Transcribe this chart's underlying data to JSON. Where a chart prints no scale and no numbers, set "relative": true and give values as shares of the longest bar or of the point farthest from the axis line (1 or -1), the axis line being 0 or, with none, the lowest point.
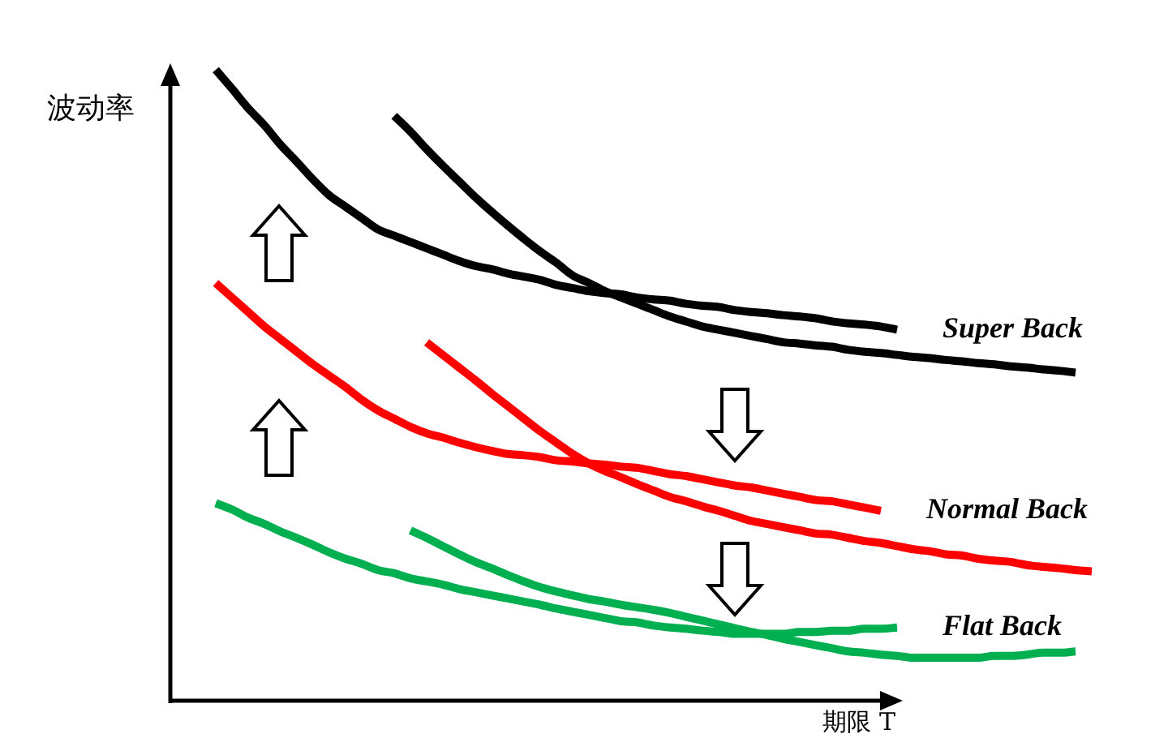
{
  "chart_data": {
    "type": "line",
    "relative": true,
    "xlabel": "期限 T",
    "ylabel": "波动率",
    "legend": false,
    "categories": [
      null,
      null,
      null,
      null,
      null,
      null,
      null,
      null,
      null,
      null,
      null,
      null,
      null,
      null,
      null,
      null,
      null,
      null,
      null,
      null,
      null,
      null,
      null,
      null,
      null,
      null,
      null,
      null,
      null,
      null,
      null,
      null,
      null,
      null,
      null,
      null,
      null,
      null,
      null,
      null,
      null,
      null,
      null,
      null,
      null,
      null,
      null,
      null,
      null,
      null,
      null,
      null,
      null,
      null,
      null
    ],
    "series": [
      {
        "name": "Super Back",
        "color": "#000000",
        "values": [
          1,
          0.97,
          0.939,
          0.912,
          0.881,
          0.854,
          0.826,
          0.801,
          0.783,
          0.765,
          0.747,
          0.737,
          0.727,
          0.717,
          0.707,
          0.697,
          0.689,
          0.684,
          0.677,
          0.672,
          0.667,
          0.659,
          0.654,
          0.649,
          0.646,
          0.644,
          0.639,
          0.636,
          0.634,
          0.629,
          0.626,
          0.624,
          0.619,
          0.616,
          0.614,
          0.611,
          0.609,
          0.606,
          0.601,
          0.598,
          0.596,
          0.593,
          0.588,
          null,
          null,
          null,
          null,
          null,
          null,
          null,
          null,
          null,
          null,
          null,
          null
        ]
      },
      {
        "color": "#000000",
        "values": [
          null,
          null,
          null,
          null,
          null,
          null,
          null,
          null,
          null,
          null,
          null,
          0.927,
          0.902,
          0.874,
          0.848,
          0.823,
          0.798,
          0.775,
          0.753,
          0.732,
          0.712,
          0.694,
          0.674,
          0.662,
          0.649,
          0.639,
          0.629,
          0.619,
          0.609,
          0.601,
          0.593,
          0.588,
          0.583,
          0.578,
          0.573,
          0.568,
          0.566,
          0.563,
          0.561,
          0.556,
          0.553,
          0.551,
          0.548,
          0.545,
          0.543,
          0.54,
          0.538,
          0.535,
          0.533,
          0.53,
          0.528,
          0.525,
          0.523,
          0.52,
          null
        ]
      },
      {
        "name": "Normal Back",
        "color": "#ff0000",
        "values": [
          0.662,
          0.639,
          0.616,
          0.593,
          0.573,
          0.553,
          0.533,
          0.515,
          0.497,
          0.477,
          0.46,
          0.447,
          0.434,
          0.424,
          0.417,
          0.409,
          0.402,
          0.396,
          0.391,
          0.389,
          0.386,
          0.381,
          0.379,
          0.376,
          0.374,
          0.371,
          0.369,
          0.364,
          0.359,
          0.356,
          0.351,
          0.346,
          0.341,
          0.338,
          0.333,
          0.328,
          0.323,
          0.318,
          0.316,
          0.311,
          0.306,
          0.301,
          null,
          null,
          null,
          null,
          null,
          null,
          null,
          null,
          null,
          null,
          null,
          null,
          null
        ]
      },
      {
        "color": "#ff0000",
        "values": [
          null,
          null,
          null,
          null,
          null,
          null,
          null,
          null,
          null,
          null,
          null,
          null,
          null,
          0.568,
          0.548,
          0.528,
          0.508,
          0.487,
          0.467,
          0.447,
          0.427,
          0.409,
          0.391,
          0.376,
          0.364,
          0.354,
          0.343,
          0.333,
          0.323,
          0.316,
          0.308,
          0.301,
          0.293,
          0.285,
          0.28,
          0.275,
          0.27,
          0.265,
          0.263,
          0.258,
          0.253,
          0.25,
          0.245,
          0.24,
          0.237,
          0.232,
          0.23,
          0.225,
          0.222,
          0.22,
          0.215,
          0.212,
          0.21,
          0.207,
          0.205
        ]
      },
      {
        "name": "Flat Back",
        "color": "#00b050",
        "values": [
          0.313,
          0.303,
          0.29,
          0.28,
          0.268,
          0.258,
          0.247,
          0.235,
          0.225,
          0.217,
          0.207,
          0.202,
          0.194,
          0.189,
          0.184,
          0.177,
          0.172,
          0.167,
          0.162,
          0.157,
          0.152,
          0.146,
          0.141,
          0.136,
          0.131,
          0.126,
          0.124,
          0.119,
          0.116,
          0.114,
          0.111,
          0.109,
          0.106,
          0.106,
          0.106,
          0.106,
          0.109,
          0.109,
          0.111,
          0.111,
          0.114,
          0.114,
          0.116,
          null,
          null,
          null,
          null,
          null,
          null,
          null,
          null,
          null,
          null,
          null,
          null
        ]
      },
      {
        "color": "#00b050",
        "values": [
          null,
          null,
          null,
          null,
          null,
          null,
          null,
          null,
          null,
          null,
          null,
          null,
          0.27,
          0.258,
          0.245,
          0.232,
          0.22,
          0.21,
          0.199,
          0.189,
          0.18,
          0.173,
          0.167,
          0.161,
          0.157,
          0.152,
          0.148,
          0.144,
          0.139,
          0.133,
          0.127,
          0.121,
          0.115,
          0.109,
          0.104,
          0.098,
          0.093,
          0.088,
          0.083,
          0.078,
          0.076,
          0.073,
          0.071,
          0.068,
          0.068,
          0.068,
          0.068,
          0.068,
          0.071,
          0.071,
          0.073,
          0.076,
          0.076,
          0.078,
          null
        ]
      }
    ]
  }
}
